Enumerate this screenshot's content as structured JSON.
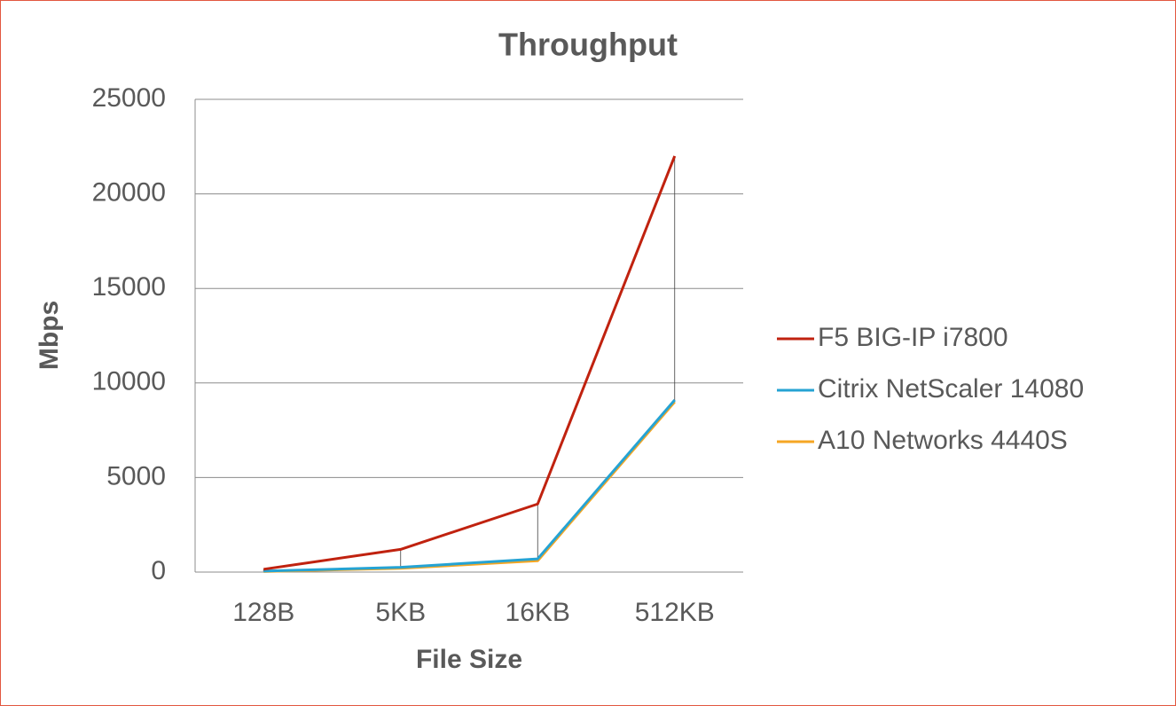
{
  "chart_data": {
    "type": "line",
    "title": "Throughput",
    "x_label": "File Size",
    "y_label": "Mbps",
    "categories": [
      "128B",
      "5KB",
      "16KB",
      "512KB"
    ],
    "series": [
      {
        "name": "F5 BIG-IP i7800",
        "color": "#c0220f",
        "values": [
          150,
          1200,
          3600,
          22000
        ]
      },
      {
        "name": "Citrix NetScaler 14080",
        "color": "#25a3d3",
        "values": [
          50,
          250,
          700,
          9100
        ]
      },
      {
        "name": "A10 Networks 4440S",
        "color": "#f5a623",
        "values": [
          30,
          200,
          600,
          9000
        ]
      }
    ],
    "ylim": [
      0,
      25000
    ],
    "yticks": [
      0,
      5000,
      10000,
      15000,
      20000,
      25000
    ],
    "grid": true,
    "high_low_lines": true,
    "legend": "right"
  }
}
